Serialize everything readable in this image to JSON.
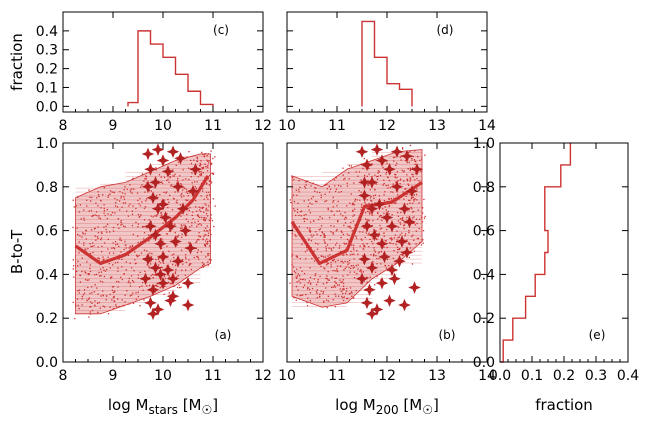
{
  "colors": {
    "data": "#cc3333",
    "axes": "#000000"
  },
  "chart_data": [
    {
      "id": "a",
      "type": "scatter",
      "label": "(a)",
      "xlabel": "log M_stars [M_sun]",
      "xlabel_parts": {
        "base": "log M",
        "sub": "stars",
        "bracket_open": " [M",
        "sun": "☉",
        "bracket_close": "]"
      },
      "ylabel": "B-to-T",
      "xlim": [
        8,
        12
      ],
      "ylim": [
        0.0,
        1.0
      ],
      "xticks": [
        8,
        9,
        10,
        11,
        12
      ],
      "yticks": [
        0.0,
        0.2,
        0.4,
        0.6,
        0.8,
        1.0
      ],
      "ytick_labels": [
        "0.0",
        "0.2",
        "0.4",
        "0.6",
        "0.8",
        "1.0"
      ],
      "median_line": {
        "x": [
          8.25,
          8.75,
          9.25,
          9.75,
          10.25,
          10.6,
          10.9
        ],
        "y": [
          0.53,
          0.45,
          0.49,
          0.57,
          0.66,
          0.74,
          0.85
        ]
      },
      "band": {
        "x": [
          8.25,
          8.75,
          9.25,
          9.75,
          10.25,
          10.75,
          10.95
        ],
        "lower": [
          0.22,
          0.22,
          0.26,
          0.3,
          0.35,
          0.43,
          0.45
        ],
        "upper": [
          0.75,
          0.8,
          0.82,
          0.87,
          0.92,
          0.95,
          0.95
        ]
      },
      "stars": [
        [
          9.7,
          0.95
        ],
        [
          9.75,
          0.88
        ],
        [
          9.85,
          0.82
        ],
        [
          9.9,
          0.97
        ],
        [
          10.0,
          0.92
        ],
        [
          10.1,
          0.87
        ],
        [
          10.2,
          0.96
        ],
        [
          10.35,
          0.93
        ],
        [
          9.8,
          0.75
        ],
        [
          9.9,
          0.7
        ],
        [
          10.0,
          0.72
        ],
        [
          10.05,
          0.66
        ],
        [
          9.75,
          0.62
        ],
        [
          9.85,
          0.58
        ],
        [
          10.15,
          0.62
        ],
        [
          9.95,
          0.54
        ],
        [
          10.25,
          0.55
        ],
        [
          10.45,
          0.6
        ],
        [
          9.7,
          0.47
        ],
        [
          9.85,
          0.43
        ],
        [
          10.0,
          0.48
        ],
        [
          10.1,
          0.42
        ],
        [
          10.3,
          0.46
        ],
        [
          9.65,
          0.38
        ],
        [
          9.8,
          0.33
        ],
        [
          10.0,
          0.36
        ],
        [
          10.2,
          0.38
        ],
        [
          9.75,
          0.27
        ],
        [
          9.9,
          0.24
        ],
        [
          10.15,
          0.28
        ],
        [
          10.5,
          0.26
        ],
        [
          9.8,
          0.22
        ],
        [
          10.6,
          0.78
        ],
        [
          10.3,
          0.8
        ],
        [
          10.4,
          0.7
        ],
        [
          10.55,
          0.52
        ],
        [
          10.5,
          0.36
        ],
        [
          9.7,
          0.8
        ],
        [
          10.65,
          0.88
        ],
        [
          10.2,
          0.3
        ],
        [
          9.95,
          0.4
        ]
      ]
    },
    {
      "id": "b",
      "type": "scatter",
      "label": "(b)",
      "xlabel": "log M_200 [M_sun]",
      "xlabel_parts": {
        "base": "log M",
        "sub": "200",
        "bracket_open": " [M",
        "sun": "☉",
        "bracket_close": "]"
      },
      "xlim": [
        10,
        14
      ],
      "ylim": [
        0.0,
        1.0
      ],
      "xticks": [
        10,
        11,
        12,
        13,
        14
      ],
      "yticks": [
        0.0,
        0.2,
        0.4,
        0.6,
        0.8,
        1.0
      ],
      "median_line": {
        "x": [
          10.1,
          10.65,
          11.2,
          11.55,
          12.1,
          12.7
        ],
        "y": [
          0.64,
          0.45,
          0.51,
          0.71,
          0.73,
          0.82
        ]
      },
      "band": {
        "x": [
          10.1,
          10.7,
          11.2,
          11.7,
          12.2,
          12.7
        ],
        "lower": [
          0.3,
          0.25,
          0.27,
          0.38,
          0.45,
          0.55
        ],
        "upper": [
          0.85,
          0.8,
          0.88,
          0.92,
          0.96,
          0.97
        ]
      },
      "stars": [
        [
          11.5,
          0.96
        ],
        [
          11.6,
          0.9
        ],
        [
          11.7,
          0.82
        ],
        [
          11.8,
          0.97
        ],
        [
          11.9,
          0.92
        ],
        [
          12.05,
          0.88
        ],
        [
          12.2,
          0.96
        ],
        [
          12.4,
          0.94
        ],
        [
          11.55,
          0.76
        ],
        [
          11.7,
          0.7
        ],
        [
          11.85,
          0.72
        ],
        [
          12.0,
          0.66
        ],
        [
          11.6,
          0.62
        ],
        [
          11.75,
          0.58
        ],
        [
          12.1,
          0.62
        ],
        [
          11.9,
          0.54
        ],
        [
          12.3,
          0.55
        ],
        [
          12.45,
          0.64
        ],
        [
          11.55,
          0.47
        ],
        [
          11.7,
          0.43
        ],
        [
          11.95,
          0.48
        ],
        [
          12.1,
          0.42
        ],
        [
          12.25,
          0.46
        ],
        [
          11.5,
          0.38
        ],
        [
          11.65,
          0.33
        ],
        [
          11.9,
          0.36
        ],
        [
          12.15,
          0.38
        ],
        [
          11.6,
          0.27
        ],
        [
          11.8,
          0.24
        ],
        [
          12.05,
          0.28
        ],
        [
          12.35,
          0.26
        ],
        [
          11.7,
          0.22
        ],
        [
          12.5,
          0.78
        ],
        [
          12.2,
          0.8
        ],
        [
          12.35,
          0.7
        ],
        [
          12.4,
          0.5
        ],
        [
          12.55,
          0.34
        ],
        [
          11.55,
          0.82
        ],
        [
          12.6,
          0.88
        ]
      ]
    },
    {
      "id": "c",
      "type": "histogram",
      "label": "(c)",
      "ylabel": "fraction",
      "xlim": [
        8,
        12
      ],
      "ylim": [
        -0.03,
        0.5
      ],
      "xticks": [
        8,
        9,
        10,
        11,
        12
      ],
      "yticks": [
        0.0,
        0.1,
        0.2,
        0.3,
        0.4
      ],
      "ytick_labels": [
        "0.0",
        "0.1",
        "0.2",
        "0.3",
        "0.4"
      ],
      "bin_edges": [
        9.3,
        9.5,
        9.75,
        10.0,
        10.25,
        10.5,
        10.75,
        11.0
      ],
      "values": [
        0.02,
        0.4,
        0.33,
        0.26,
        0.17,
        0.08,
        0.01
      ]
    },
    {
      "id": "d",
      "type": "histogram",
      "label": "(d)",
      "xlim": [
        10,
        14
      ],
      "ylim": [
        -0.03,
        0.5
      ],
      "xticks": [
        10,
        11,
        12,
        13,
        14
      ],
      "yticks": [
        0.0,
        0.1,
        0.2,
        0.3,
        0.4
      ],
      "bin_edges": [
        11.5,
        11.75,
        12.0,
        12.25,
        12.5
      ],
      "values": [
        0.45,
        0.26,
        0.12,
        0.09
      ]
    },
    {
      "id": "e",
      "type": "histogram",
      "orientation": "horizontal",
      "label": "(e)",
      "xlabel": "fraction",
      "xlim": [
        0.0,
        0.4
      ],
      "ylim": [
        0.0,
        1.0
      ],
      "xticks": [
        0.0,
        0.1,
        0.2,
        0.3,
        0.4
      ],
      "xtick_labels": [
        "0.0",
        "0.1",
        "0.2",
        "0.3",
        "0.4"
      ],
      "yticks": [
        0.0,
        0.2,
        0.4,
        0.6,
        0.8,
        1.0
      ],
      "ytick_labels": [
        "0.0",
        "0.2",
        "0.4",
        "0.6",
        "0.8",
        "1.0"
      ],
      "bin_edges": [
        0.0,
        0.1,
        0.2,
        0.3,
        0.4,
        0.5,
        0.6,
        0.7,
        0.8,
        0.9,
        1.0
      ],
      "values": [
        0.01,
        0.04,
        0.08,
        0.11,
        0.14,
        0.15,
        0.14,
        0.14,
        0.19,
        0.22
      ]
    }
  ]
}
